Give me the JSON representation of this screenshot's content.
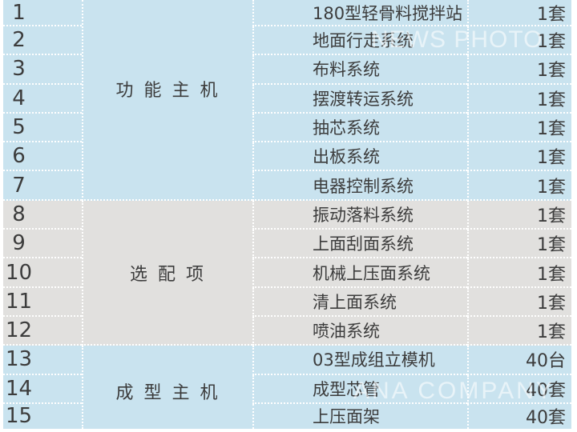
{
  "watermarks": {
    "top": "NEWS PHOTO",
    "bottom": "ANA COMPANY"
  },
  "colors": {
    "row_blue": "#c9e3ef",
    "row_gray": "#e1e0de",
    "grid_line": "#ffffff",
    "text": "#3c3c3c",
    "watermark": "rgba(255,255,255,0.58)"
  },
  "table": {
    "groups": [
      {
        "category": "功 能 主 机",
        "theme": "blue",
        "rows": [
          {
            "no": "1",
            "item": "180型轻骨料搅拌站",
            "qty": "1套"
          },
          {
            "no": "2",
            "item": "地面行走系统",
            "qty": "1套"
          },
          {
            "no": "3",
            "item": "布料系统",
            "qty": "1套"
          },
          {
            "no": "4",
            "item": "摆渡转运系统",
            "qty": "1套"
          },
          {
            "no": "5",
            "item": "抽芯系统",
            "qty": "1套"
          },
          {
            "no": "6",
            "item": "出板系统",
            "qty": "1套"
          },
          {
            "no": "7",
            "item": "电器控制系统",
            "qty": "1套"
          }
        ]
      },
      {
        "category": "选 配 项",
        "theme": "gray",
        "rows": [
          {
            "no": "8",
            "item": "振动落料系统",
            "qty": "1套"
          },
          {
            "no": "9",
            "item": "上面刮面系统",
            "qty": "1套"
          },
          {
            "no": "10",
            "item": "机械上压面系统",
            "qty": "1套"
          },
          {
            "no": "11",
            "item": "清上面系统",
            "qty": "1套"
          },
          {
            "no": "12",
            "item": "喷油系统",
            "qty": "1套"
          }
        ]
      },
      {
        "category": "成 型 主 机",
        "theme": "blue",
        "rows": [
          {
            "no": "13",
            "item": "03型成组立模机",
            "qty": "40台"
          },
          {
            "no": "14",
            "item": "成型芯管",
            "qty": "40套"
          },
          {
            "no": "15",
            "item": "上压面架",
            "qty": "40套"
          }
        ]
      }
    ]
  }
}
